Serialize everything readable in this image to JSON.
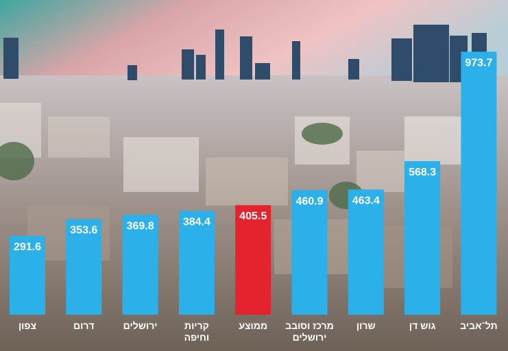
{
  "colors": {
    "bar": "#2bb0ea",
    "highlight_bar": "#e4232f",
    "label_text": "#ffffff"
  },
  "chart_data": {
    "type": "bar",
    "categories": [
      "צפון",
      "דרום",
      "ירושלים",
      "קריות וחיפה",
      "ממוצע",
      "מרכז וסובב ירושלים",
      "שרון",
      "גוש דן",
      "תל־אביב"
    ],
    "category_lines": [
      [
        "צפון"
      ],
      [
        "דרום"
      ],
      [
        "ירושלים"
      ],
      [
        "קריות",
        "וחיפה"
      ],
      [
        "ממוצע"
      ],
      [
        "מרכז וסובב",
        "ירושלים"
      ],
      [
        "שרון"
      ],
      [
        "גוש דן"
      ],
      [
        "תל־אביב"
      ]
    ],
    "values": [
      291.6,
      353.6,
      369.8,
      384.4,
      405.5,
      460.9,
      463.4,
      568.3,
      973.7
    ],
    "value_labels": [
      "291.6",
      "353.6",
      "369.8",
      "384.4",
      "405.5",
      "460.9",
      "463.4",
      "568.3",
      "973.7"
    ],
    "highlight_index": 4,
    "ylim": [
      0,
      1000
    ],
    "title": "",
    "xlabel": "",
    "ylabel": "",
    "grid": false,
    "legend": "none",
    "background": "city-skyline-photo"
  }
}
